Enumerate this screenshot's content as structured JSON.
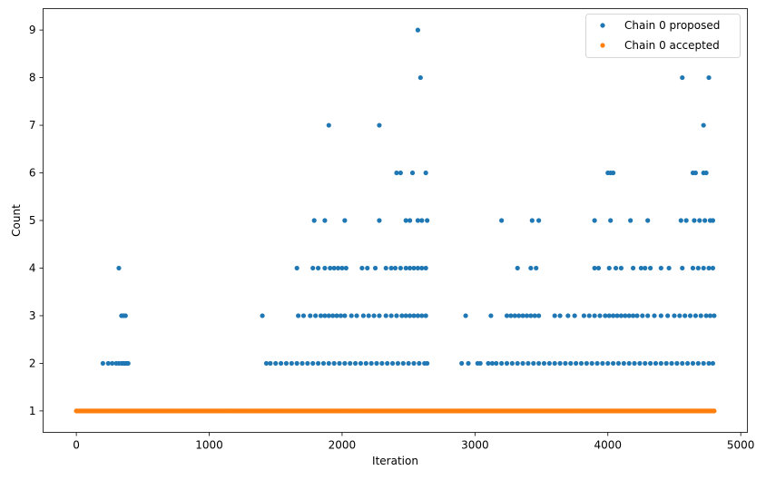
{
  "chart_data": {
    "type": "scatter",
    "xlabel": "Iteration",
    "ylabel": "Count",
    "xlim": [
      -250,
      5050
    ],
    "ylim": [
      0.55,
      9.45
    ],
    "xticks": [
      0,
      1000,
      2000,
      3000,
      4000,
      5000
    ],
    "yticks": [
      1,
      2,
      3,
      4,
      5,
      6,
      7,
      8,
      9
    ],
    "grid": false,
    "legend": {
      "position": "top-right",
      "entries": [
        "Chain 0 proposed",
        "Chain 0 accepted"
      ]
    },
    "series": [
      {
        "name": "Chain 0 proposed",
        "color": "#1f77b4",
        "points": [
          [
            200,
            2
          ],
          [
            240,
            2
          ],
          [
            270,
            2
          ],
          [
            300,
            2
          ],
          [
            320,
            2
          ],
          [
            340,
            2
          ],
          [
            350,
            2
          ],
          [
            360,
            2
          ],
          [
            370,
            2
          ],
          [
            380,
            2
          ],
          [
            390,
            2
          ],
          [
            320,
            4
          ],
          [
            340,
            3
          ],
          [
            355,
            3
          ],
          [
            370,
            3
          ],
          [
            1400,
            3
          ],
          [
            1430,
            2
          ],
          [
            1460,
            2
          ],
          [
            1500,
            2
          ],
          [
            1540,
            2
          ],
          [
            1580,
            2
          ],
          [
            1620,
            2
          ],
          [
            1660,
            2
          ],
          [
            1700,
            2
          ],
          [
            1740,
            2
          ],
          [
            1780,
            2
          ],
          [
            1820,
            2
          ],
          [
            1860,
            2
          ],
          [
            1900,
            2
          ],
          [
            1940,
            2
          ],
          [
            1980,
            2
          ],
          [
            2020,
            2
          ],
          [
            2060,
            2
          ],
          [
            2100,
            2
          ],
          [
            2140,
            2
          ],
          [
            2180,
            2
          ],
          [
            2220,
            2
          ],
          [
            2260,
            2
          ],
          [
            2300,
            2
          ],
          [
            2340,
            2
          ],
          [
            2380,
            2
          ],
          [
            2420,
            2
          ],
          [
            2460,
            2
          ],
          [
            2500,
            2
          ],
          [
            2540,
            2
          ],
          [
            2580,
            2
          ],
          [
            2620,
            2
          ],
          [
            2640,
            2
          ],
          [
            1670,
            3
          ],
          [
            1710,
            3
          ],
          [
            1760,
            3
          ],
          [
            1800,
            3
          ],
          [
            1840,
            3
          ],
          [
            1870,
            3
          ],
          [
            1900,
            3
          ],
          [
            1930,
            3
          ],
          [
            1960,
            3
          ],
          [
            1990,
            3
          ],
          [
            2020,
            3
          ],
          [
            2070,
            3
          ],
          [
            2110,
            3
          ],
          [
            2160,
            3
          ],
          [
            2200,
            3
          ],
          [
            2240,
            3
          ],
          [
            2280,
            3
          ],
          [
            2330,
            3
          ],
          [
            2370,
            3
          ],
          [
            2410,
            3
          ],
          [
            2450,
            3
          ],
          [
            2480,
            3
          ],
          [
            2510,
            3
          ],
          [
            2540,
            3
          ],
          [
            2570,
            3
          ],
          [
            2600,
            3
          ],
          [
            2630,
            3
          ],
          [
            1660,
            4
          ],
          [
            1780,
            4
          ],
          [
            1820,
            4
          ],
          [
            1870,
            4
          ],
          [
            1910,
            4
          ],
          [
            1940,
            4
          ],
          [
            1970,
            4
          ],
          [
            2000,
            4
          ],
          [
            2030,
            4
          ],
          [
            2150,
            4
          ],
          [
            2190,
            4
          ],
          [
            2250,
            4
          ],
          [
            2330,
            4
          ],
          [
            2370,
            4
          ],
          [
            2400,
            4
          ],
          [
            2440,
            4
          ],
          [
            2480,
            4
          ],
          [
            2510,
            4
          ],
          [
            2540,
            4
          ],
          [
            2570,
            4
          ],
          [
            2600,
            4
          ],
          [
            2630,
            4
          ],
          [
            1790,
            5
          ],
          [
            1870,
            5
          ],
          [
            2020,
            5
          ],
          [
            2280,
            5
          ],
          [
            2480,
            5
          ],
          [
            2510,
            5
          ],
          [
            2570,
            5
          ],
          [
            2600,
            5
          ],
          [
            2640,
            5
          ],
          [
            2410,
            6
          ],
          [
            2440,
            6
          ],
          [
            2530,
            6
          ],
          [
            2630,
            6
          ],
          [
            1900,
            7
          ],
          [
            2280,
            7
          ],
          [
            2590,
            8
          ],
          [
            2570,
            9
          ],
          [
            2900,
            2
          ],
          [
            2950,
            2
          ],
          [
            3020,
            2
          ],
          [
            3040,
            2
          ],
          [
            3100,
            2
          ],
          [
            3130,
            2
          ],
          [
            3160,
            2
          ],
          [
            3200,
            2
          ],
          [
            3240,
            2
          ],
          [
            3280,
            2
          ],
          [
            3320,
            2
          ],
          [
            3360,
            2
          ],
          [
            3400,
            2
          ],
          [
            3440,
            2
          ],
          [
            3480,
            2
          ],
          [
            3520,
            2
          ],
          [
            3560,
            2
          ],
          [
            3600,
            2
          ],
          [
            3640,
            2
          ],
          [
            3680,
            2
          ],
          [
            3720,
            2
          ],
          [
            3760,
            2
          ],
          [
            3800,
            2
          ],
          [
            3840,
            2
          ],
          [
            3880,
            2
          ],
          [
            3920,
            2
          ],
          [
            3960,
            2
          ],
          [
            4000,
            2
          ],
          [
            4040,
            2
          ],
          [
            4080,
            2
          ],
          [
            4120,
            2
          ],
          [
            4160,
            2
          ],
          [
            4200,
            2
          ],
          [
            4240,
            2
          ],
          [
            4280,
            2
          ],
          [
            4320,
            2
          ],
          [
            4360,
            2
          ],
          [
            4400,
            2
          ],
          [
            4440,
            2
          ],
          [
            4480,
            2
          ],
          [
            4520,
            2
          ],
          [
            4560,
            2
          ],
          [
            4600,
            2
          ],
          [
            4640,
            2
          ],
          [
            4680,
            2
          ],
          [
            4720,
            2
          ],
          [
            4760,
            2
          ],
          [
            4790,
            2
          ],
          [
            2930,
            3
          ],
          [
            3120,
            3
          ],
          [
            3240,
            3
          ],
          [
            3270,
            3
          ],
          [
            3300,
            3
          ],
          [
            3330,
            3
          ],
          [
            3360,
            3
          ],
          [
            3390,
            3
          ],
          [
            3420,
            3
          ],
          [
            3450,
            3
          ],
          [
            3480,
            3
          ],
          [
            3600,
            3
          ],
          [
            3640,
            3
          ],
          [
            3700,
            3
          ],
          [
            3750,
            3
          ],
          [
            3820,
            3
          ],
          [
            3860,
            3
          ],
          [
            3900,
            3
          ],
          [
            3940,
            3
          ],
          [
            3980,
            3
          ],
          [
            4010,
            3
          ],
          [
            4040,
            3
          ],
          [
            4070,
            3
          ],
          [
            4100,
            3
          ],
          [
            4130,
            3
          ],
          [
            4160,
            3
          ],
          [
            4190,
            3
          ],
          [
            4220,
            3
          ],
          [
            4260,
            3
          ],
          [
            4300,
            3
          ],
          [
            4350,
            3
          ],
          [
            4400,
            3
          ],
          [
            4450,
            3
          ],
          [
            4500,
            3
          ],
          [
            4540,
            3
          ],
          [
            4580,
            3
          ],
          [
            4620,
            3
          ],
          [
            4660,
            3
          ],
          [
            4700,
            3
          ],
          [
            4740,
            3
          ],
          [
            4770,
            3
          ],
          [
            4800,
            3
          ],
          [
            3320,
            4
          ],
          [
            3420,
            4
          ],
          [
            3460,
            4
          ],
          [
            3900,
            4
          ],
          [
            3930,
            4
          ],
          [
            4010,
            4
          ],
          [
            4060,
            4
          ],
          [
            4100,
            4
          ],
          [
            4190,
            4
          ],
          [
            4250,
            4
          ],
          [
            4280,
            4
          ],
          [
            4320,
            4
          ],
          [
            4400,
            4
          ],
          [
            4460,
            4
          ],
          [
            4560,
            4
          ],
          [
            4640,
            4
          ],
          [
            4680,
            4
          ],
          [
            4720,
            4
          ],
          [
            4760,
            4
          ],
          [
            4790,
            4
          ],
          [
            3200,
            5
          ],
          [
            3430,
            5
          ],
          [
            3480,
            5
          ],
          [
            3900,
            5
          ],
          [
            4020,
            5
          ],
          [
            4170,
            5
          ],
          [
            4300,
            5
          ],
          [
            4550,
            5
          ],
          [
            4590,
            5
          ],
          [
            4650,
            5
          ],
          [
            4690,
            5
          ],
          [
            4730,
            5
          ],
          [
            4770,
            5
          ],
          [
            4790,
            5
          ],
          [
            4000,
            6
          ],
          [
            4020,
            6
          ],
          [
            4040,
            6
          ],
          [
            4640,
            6
          ],
          [
            4660,
            6
          ],
          [
            4720,
            6
          ],
          [
            4740,
            6
          ],
          [
            4720,
            7
          ],
          [
            4560,
            8
          ],
          [
            4760,
            8
          ]
        ]
      },
      {
        "name": "Chain 0 accepted",
        "color": "#ff7f0e",
        "range": {
          "x_start": 0,
          "x_end": 4800,
          "step": 10,
          "y": 1
        }
      }
    ]
  }
}
